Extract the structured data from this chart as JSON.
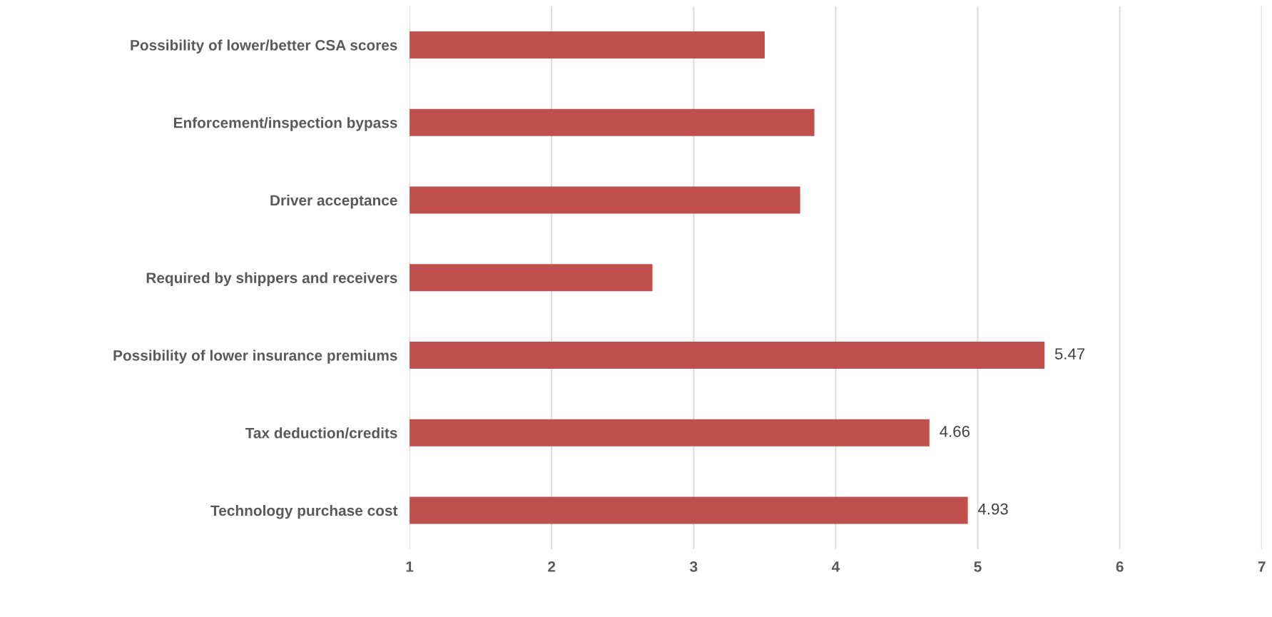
{
  "chart_data": {
    "type": "bar",
    "orientation": "horizontal",
    "categories": [
      "Possibility of lower/better CSA scores",
      "Enforcement/inspection bypass",
      "Driver acceptance",
      "Required by shippers and receivers",
      "Possibility of lower insurance premiums",
      "Tax deduction/credits",
      "Technology purchase cost"
    ],
    "values": [
      3.5,
      3.85,
      3.75,
      2.71,
      5.47,
      4.66,
      4.93
    ],
    "value_labels": [
      null,
      null,
      null,
      null,
      "5.47",
      "4.66",
      "4.93"
    ],
    "color": "#c0504d",
    "xlim": [
      1,
      7
    ],
    "xticks": [
      1,
      2,
      3,
      4,
      5,
      6,
      7
    ],
    "grid": "x",
    "legend": false
  }
}
